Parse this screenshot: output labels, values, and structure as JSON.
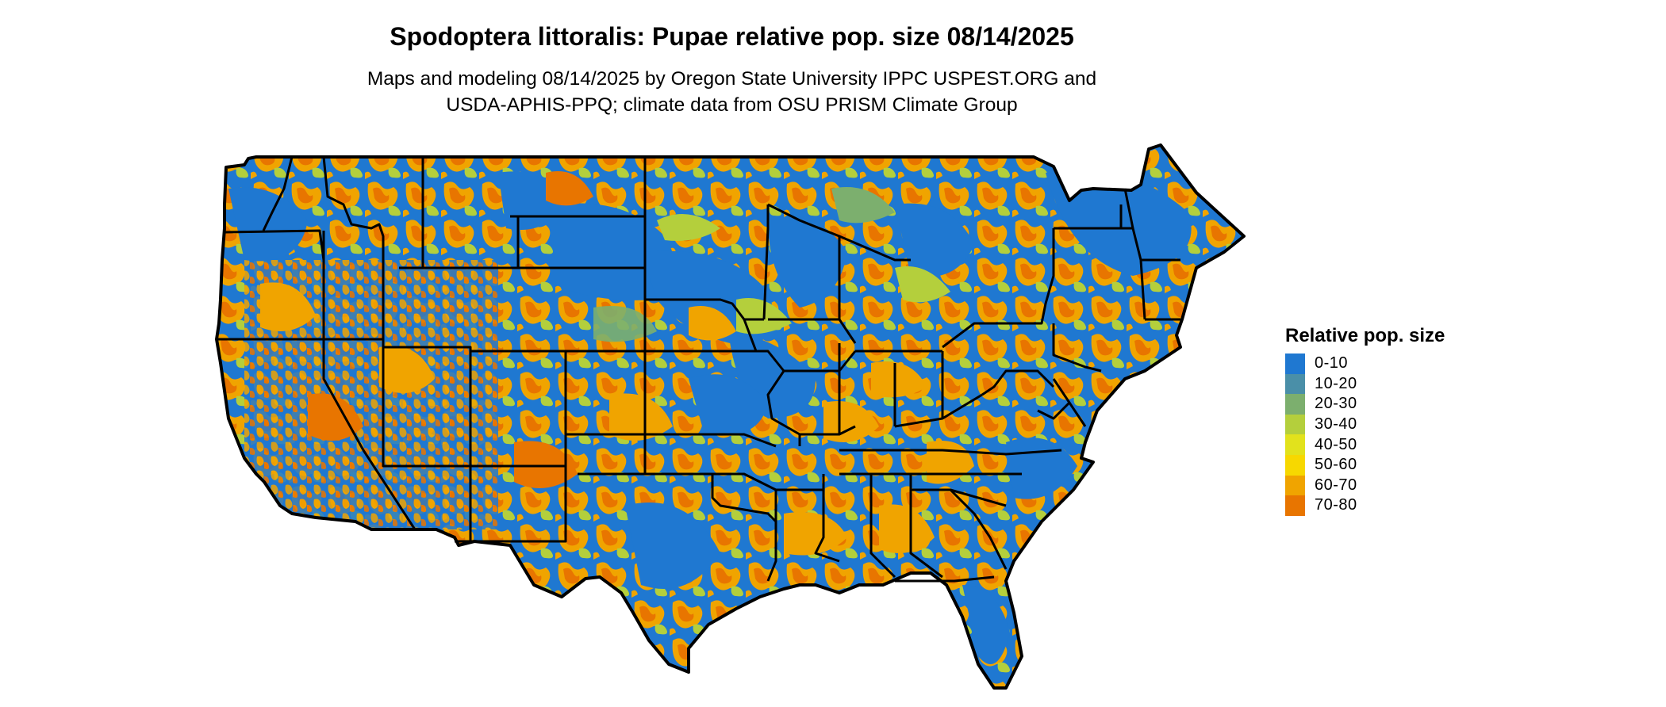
{
  "map": {
    "title": "Spodoptera littoralis: Pupae relative pop. size 08/14/2025",
    "subtitle_line1": "Maps and modeling 08/14/2025 by Oregon State University IPPC USPEST.ORG and",
    "subtitle_line2": "USDA-APHIS-PPQ; climate data from OSU PRISM Climate Group",
    "region": "Contiguous United States",
    "boundaries": "state outlines"
  },
  "legend": {
    "title": "Relative pop. size",
    "classes": [
      {
        "label": "0-10",
        "color": "#1f78d1"
      },
      {
        "label": "10-20",
        "color": "#4a8fa8"
      },
      {
        "label": "20-30",
        "color": "#7caf6e"
      },
      {
        "label": "30-40",
        "color": "#b4cf3c"
      },
      {
        "label": "40-50",
        "color": "#e2e21c"
      },
      {
        "label": "50-60",
        "color": "#f7d800"
      },
      {
        "label": "60-70",
        "color": "#f0a400"
      },
      {
        "label": "70-80",
        "color": "#e87500"
      }
    ]
  }
}
